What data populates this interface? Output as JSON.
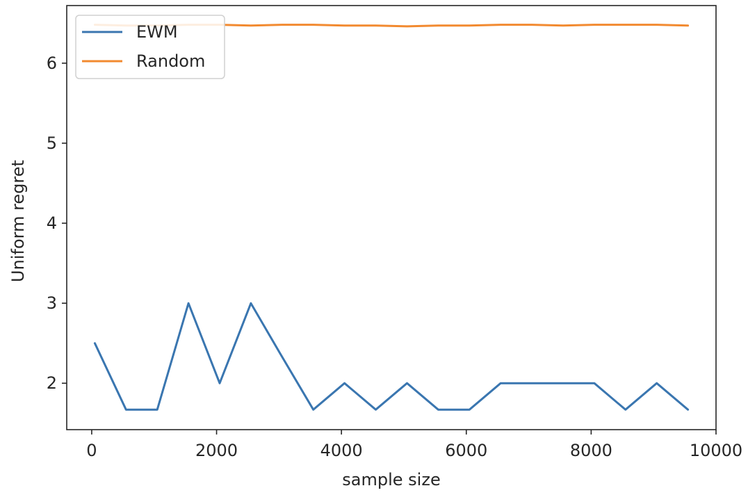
{
  "chart_data": {
    "type": "line",
    "xlabel": "sample size",
    "ylabel": "Uniform regret",
    "xlim": [
      -400,
      10000
    ],
    "ylim": [
      1.42,
      6.72
    ],
    "xticks": [
      0,
      2000,
      4000,
      6000,
      8000,
      10000
    ],
    "yticks": [
      2,
      3,
      4,
      5,
      6
    ],
    "legend_position": "top-left",
    "grid": false,
    "x": [
      50,
      550,
      1050,
      1550,
      2050,
      2550,
      3050,
      3550,
      4050,
      4550,
      5050,
      5550,
      6050,
      6550,
      7050,
      7550,
      8050,
      8550,
      9050,
      9550
    ],
    "series": [
      {
        "name": "EWM",
        "color": "#3a76b0",
        "values": [
          2.5,
          1.67,
          1.67,
          3.0,
          2.0,
          3.0,
          2.33,
          1.67,
          2.0,
          1.67,
          2.0,
          1.67,
          1.67,
          2.0,
          2.0,
          2.0,
          2.0,
          1.67,
          2.0,
          1.67
        ]
      },
      {
        "name": "Random",
        "color": "#f28a30",
        "values": [
          6.48,
          6.47,
          6.47,
          6.48,
          6.48,
          6.47,
          6.48,
          6.48,
          6.47,
          6.47,
          6.46,
          6.47,
          6.47,
          6.48,
          6.48,
          6.47,
          6.48,
          6.48,
          6.48,
          6.47
        ]
      }
    ]
  }
}
